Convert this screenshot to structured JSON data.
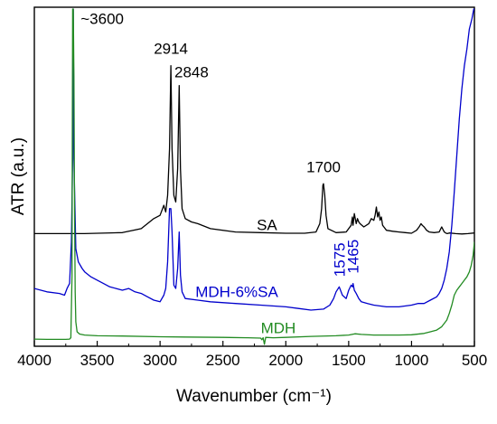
{
  "chart_data": {
    "type": "line",
    "xlabel": "Wavenumber (cm⁻¹)",
    "ylabel": "ATR (a.u.)",
    "xlim": [
      4000,
      500
    ],
    "x_reversed": true,
    "ylim": [
      0,
      100
    ],
    "y_ticks_shown": false,
    "x_ticks": [
      4000,
      3500,
      3000,
      2500,
      2000,
      1500,
      1000,
      500
    ],
    "x_tick_labels": [
      "4000",
      "3500",
      "3000",
      "2500",
      "2000",
      "1500",
      "1000",
      "500"
    ],
    "grid": false,
    "series": [
      {
        "name": "SA",
        "color": "#000000",
        "x": [
          4000,
          3600,
          3300,
          3150,
          3050,
          3000,
          2970,
          2955,
          2940,
          2925,
          2914,
          2905,
          2890,
          2875,
          2860,
          2848,
          2838,
          2825,
          2800,
          2750,
          2700,
          2600,
          2400,
          2200,
          2000,
          1850,
          1760,
          1730,
          1715,
          1705,
          1700,
          1690,
          1680,
          1665,
          1600,
          1520,
          1480,
          1470,
          1465,
          1455,
          1440,
          1430,
          1420,
          1410,
          1380,
          1340,
          1320,
          1300,
          1290,
          1280,
          1270,
          1260,
          1250,
          1240,
          1230,
          1220,
          1200,
          1150,
          1100,
          1050,
          1000,
          960,
          940,
          925,
          915,
          900,
          880,
          860,
          820,
          780,
          760,
          740,
          725,
          715,
          700,
          650,
          600,
          550,
          500
        ],
        "y": [
          32.5,
          32.5,
          32.8,
          34.0,
          37.0,
          38.0,
          41.0,
          39.0,
          44.0,
          58.0,
          83.0,
          58.0,
          44.0,
          42.0,
          52.0,
          77.0,
          52.0,
          40.0,
          37.0,
          36.0,
          35.5,
          34.0,
          33.0,
          32.8,
          32.6,
          32.6,
          33.0,
          35.5,
          40.0,
          47.0,
          47.5,
          44.0,
          38.0,
          34.0,
          32.8,
          33.0,
          35.0,
          37.5,
          35.0,
          38.5,
          35.5,
          37.0,
          36.0,
          35.5,
          34.5,
          35.5,
          37.0,
          36.5,
          38.0,
          40.5,
          37.5,
          39.0,
          36.5,
          37.5,
          35.0,
          34.5,
          33.5,
          33.2,
          33.0,
          32.8,
          32.6,
          33.5,
          34.5,
          35.5,
          35.0,
          34.5,
          33.5,
          33.0,
          32.8,
          33.0,
          34.5,
          33.0,
          32.6,
          32.5,
          32.7,
          32.5,
          32.4,
          32.5,
          32.7
        ]
      },
      {
        "name": "MDH-6%SA",
        "color": "#0000cc",
        "x": [
          4000,
          3900,
          3800,
          3760,
          3740,
          3720,
          3705,
          3695,
          3690,
          3685,
          3670,
          3650,
          3620,
          3600,
          3550,
          3500,
          3450,
          3400,
          3350,
          3300,
          3250,
          3200,
          3150,
          3100,
          3050,
          3000,
          2970,
          2955,
          2940,
          2925,
          2914,
          2905,
          2890,
          2875,
          2860,
          2848,
          2838,
          2825,
          2800,
          2700,
          2600,
          2400,
          2200,
          2000,
          1900,
          1800,
          1700,
          1650,
          1620,
          1600,
          1575,
          1550,
          1520,
          1500,
          1480,
          1470,
          1465,
          1455,
          1440,
          1420,
          1400,
          1350,
          1300,
          1200,
          1100,
          1000,
          950,
          900,
          850,
          800,
          780,
          760,
          740,
          720,
          700,
          680,
          660,
          640,
          620,
          600,
          580,
          560,
          540,
          520,
          505,
          500
        ],
        "y": [
          16.0,
          15.0,
          14.5,
          14.0,
          16.0,
          17.5,
          30.0,
          55.0,
          100.0,
          55.0,
          28.0,
          24.0,
          22.0,
          21.0,
          19.5,
          18.5,
          17.5,
          16.5,
          16.0,
          15.5,
          16.0,
          15.0,
          14.5,
          13.5,
          12.5,
          12.0,
          14.0,
          16.0,
          24.0,
          40.0,
          40.0,
          33.0,
          17.0,
          16.0,
          22.0,
          33.0,
          20.0,
          15.0,
          13.0,
          12.5,
          12.0,
          11.5,
          11.0,
          10.5,
          10.0,
          9.5,
          9.8,
          11.0,
          13.0,
          15.0,
          16.5,
          14.0,
          13.0,
          15.5,
          17.0,
          16.5,
          17.5,
          15.5,
          14.5,
          13.0,
          12.0,
          11.5,
          11.0,
          10.5,
          10.5,
          11.0,
          11.5,
          11.5,
          12.5,
          13.5,
          14.5,
          16.0,
          18.5,
          22.0,
          27.0,
          35.0,
          45.0,
          56.0,
          67.0,
          76.0,
          83.0,
          88.0,
          94.0,
          97.0,
          100.0,
          100.0
        ]
      },
      {
        "name": "MDH",
        "color": "#228b22",
        "x": [
          4000,
          3900,
          3800,
          3750,
          3720,
          3710,
          3700,
          3698,
          3695,
          3690,
          3685,
          3680,
          3675,
          3670,
          3660,
          3640,
          3600,
          3500,
          3300,
          3000,
          2800,
          2500,
          2300,
          2200,
          2190,
          2180,
          2170,
          2160,
          2100,
          2000,
          1800,
          1600,
          1500,
          1450,
          1400,
          1300,
          1200,
          1100,
          1000,
          900,
          850,
          800,
          760,
          720,
          700,
          680,
          660,
          640,
          620,
          600,
          580,
          560,
          540,
          525,
          510,
          500
        ],
        "y": [
          0.8,
          0.7,
          0.7,
          0.7,
          0.8,
          1.2,
          20.0,
          60.0,
          100.0,
          100.0,
          80.0,
          40.0,
          15.0,
          6.0,
          3.0,
          2.3,
          2.0,
          1.8,
          1.7,
          1.5,
          1.4,
          1.3,
          1.2,
          1.1,
          0.6,
          1.2,
          -0.8,
          1.3,
          1.2,
          1.3,
          1.6,
          1.8,
          2.0,
          2.4,
          2.2,
          2.0,
          2.0,
          2.0,
          2.1,
          2.5,
          3.0,
          3.5,
          4.5,
          6.5,
          8.5,
          11.0,
          14.0,
          15.5,
          16.5,
          17.5,
          18.5,
          19.5,
          21.0,
          23.0,
          26.0,
          30.0
        ]
      }
    ],
    "series_labels": [
      "SA",
      "MDH-6%SA",
      "MDH"
    ],
    "annotations": [
      {
        "text": "~3600",
        "x": 3460,
        "y": 95.5,
        "color": "#000000"
      },
      {
        "text": "2914",
        "x": 2914,
        "y": 86.5,
        "color": "#000000"
      },
      {
        "text": "2848",
        "x": 2750,
        "y": 79.5,
        "color": "#000000"
      },
      {
        "text": "1700",
        "x": 1700,
        "y": 51.0,
        "color": "#000000"
      },
      {
        "text": "1575",
        "x": 1575,
        "y": 19.5,
        "color": "#0000cc",
        "rotated": true
      },
      {
        "text": "1465",
        "x": 1465,
        "y": 20.5,
        "color": "#0000cc",
        "rotated": true
      }
    ]
  }
}
